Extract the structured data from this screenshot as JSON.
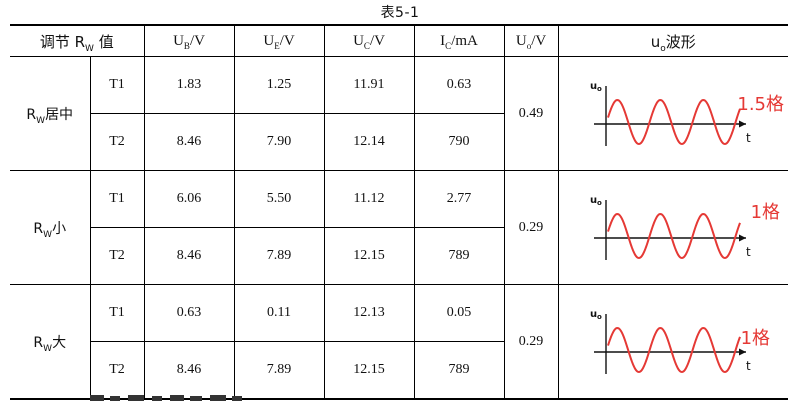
{
  "caption": "表5-1",
  "headers": {
    "condition": "调节 R",
    "condition_sub": "W",
    "condition_suffix": " 值",
    "ub": "U",
    "ub_sub": "B",
    "ub_unit": "/V",
    "ue": "U",
    "ue_sub": "E",
    "ue_unit": "/V",
    "uc": "U",
    "uc_sub": "C",
    "uc_unit": "/V",
    "ic": "I",
    "ic_sub": "C",
    "ic_unit": "/mA",
    "uo": "U",
    "uo_sub": "o",
    "uo_unit": "/V",
    "wave": "u",
    "wave_sub": "o",
    "wave_suffix": "波形"
  },
  "groups": [
    {
      "cond_main": "R",
      "cond_sub": "W",
      "cond_suffix": "居中",
      "uo": "0.49",
      "wave_label": "1.5格",
      "wave_axis_y": "u",
      "wave_axis_y_sub": "o",
      "wave_axis_x": "t",
      "rows": [
        {
          "tid": "T1",
          "ub": "1.83",
          "ue": "1.25",
          "uc": "11.91",
          "ic": "0.63"
        },
        {
          "tid": "T2",
          "ub": "8.46",
          "ue": "7.90",
          "uc": "12.14",
          "ic": "790"
        }
      ]
    },
    {
      "cond_main": "R",
      "cond_sub": "W",
      "cond_suffix": "小",
      "uo": "0.29",
      "wave_label": "1格",
      "wave_axis_y": "u",
      "wave_axis_y_sub": "o",
      "wave_axis_x": "t",
      "rows": [
        {
          "tid": "T1",
          "ub": "6.06",
          "ue": "5.50",
          "uc": "11.12",
          "ic": "2.77"
        },
        {
          "tid": "T2",
          "ub": "8.46",
          "ue": "7.89",
          "uc": "12.15",
          "ic": "789"
        }
      ]
    },
    {
      "cond_main": "R",
      "cond_sub": "W",
      "cond_suffix": "大",
      "uo": "0.29",
      "wave_label": "1格",
      "wave_axis_y": "u",
      "wave_axis_y_sub": "o",
      "wave_axis_x": "t",
      "rows": [
        {
          "tid": "T1",
          "ub": "0.63",
          "ue": "0.11",
          "uc": "12.13",
          "ic": "0.05"
        },
        {
          "tid": "T2",
          "ub": "8.46",
          "ue": "7.89",
          "uc": "12.15",
          "ic": "789"
        }
      ]
    }
  ],
  "colors": {
    "wave": "#e53935",
    "axis": "#111111"
  }
}
